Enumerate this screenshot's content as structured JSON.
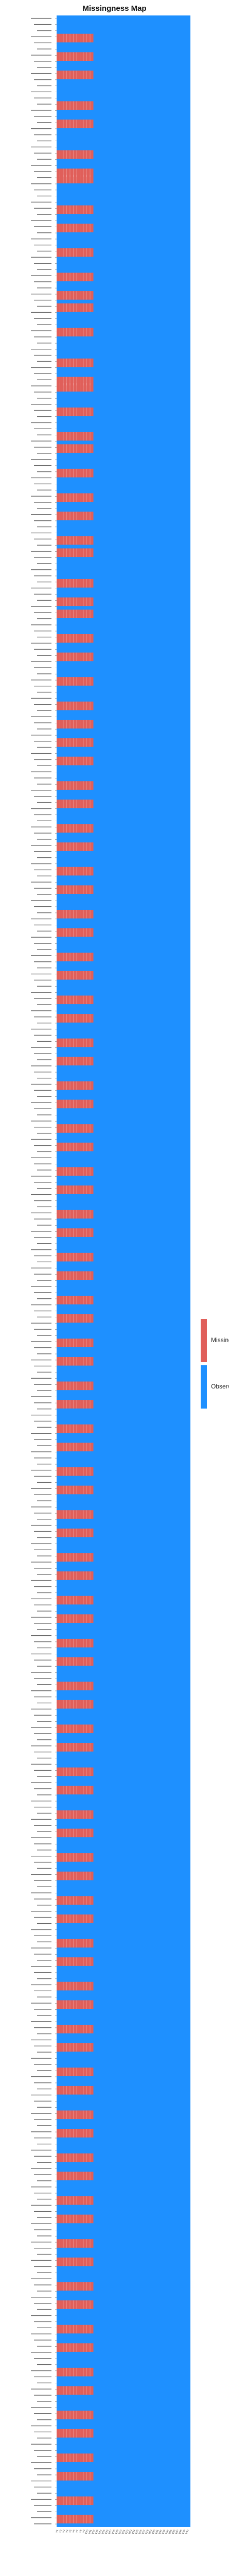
{
  "chart_data": {
    "type": "heatmap",
    "title": "Missingness Map",
    "legend": [
      {
        "label": "Missing (",
        "color": "#E05F5A"
      },
      {
        "label": "Observed",
        "color": "#1E90FF"
      }
    ],
    "legend_position": "right",
    "columns": [
      "V1",
      "V2",
      "V3",
      "V4",
      "V5",
      "V6",
      "V7",
      "V8",
      "V9",
      "V10",
      "V11",
      "V12",
      "V13",
      "V14",
      "V15",
      "V16",
      "V17",
      "V18",
      "V19",
      "V20",
      "V21",
      "V22",
      "V23",
      "V24",
      "V25",
      "V26",
      "V27",
      "V28",
      "V29",
      "V30",
      "V31",
      "V32",
      "V33",
      "V34",
      "V35",
      "V36",
      "V37",
      "V38",
      "V39",
      "V40"
    ],
    "row_count": 410,
    "missing_column": 0,
    "missing_rows": [
      3,
      6,
      9,
      14,
      17,
      22,
      25,
      26,
      31,
      34,
      38,
      42,
      45,
      47,
      51,
      56,
      59,
      60,
      64,
      68,
      70,
      74,
      78,
      81,
      85,
      87,
      92,
      95,
      97,
      101,
      104,
      108,
      112,
      115,
      118,
      121,
      125,
      128,
      132,
      135,
      139,
      142,
      146,
      149,
      153,
      156,
      160,
      163,
      167,
      170,
      174,
      177,
      181,
      184,
      188,
      191,
      195,
      198,
      202,
      205,
      209,
      212,
      216,
      219,
      223,
      226,
      230,
      233,
      237,
      240,
      244,
      247,
      251,
      254,
      258,
      261,
      265,
      268,
      272,
      275,
      279,
      282,
      286,
      289,
      293,
      296,
      300,
      303,
      307,
      310,
      314,
      317,
      321,
      324,
      328,
      331,
      335,
      338,
      342,
      345,
      349,
      352,
      356,
      359,
      363,
      366,
      370,
      373,
      377,
      380,
      384,
      387,
      391,
      394,
      398,
      401,
      405,
      408
    ]
  }
}
